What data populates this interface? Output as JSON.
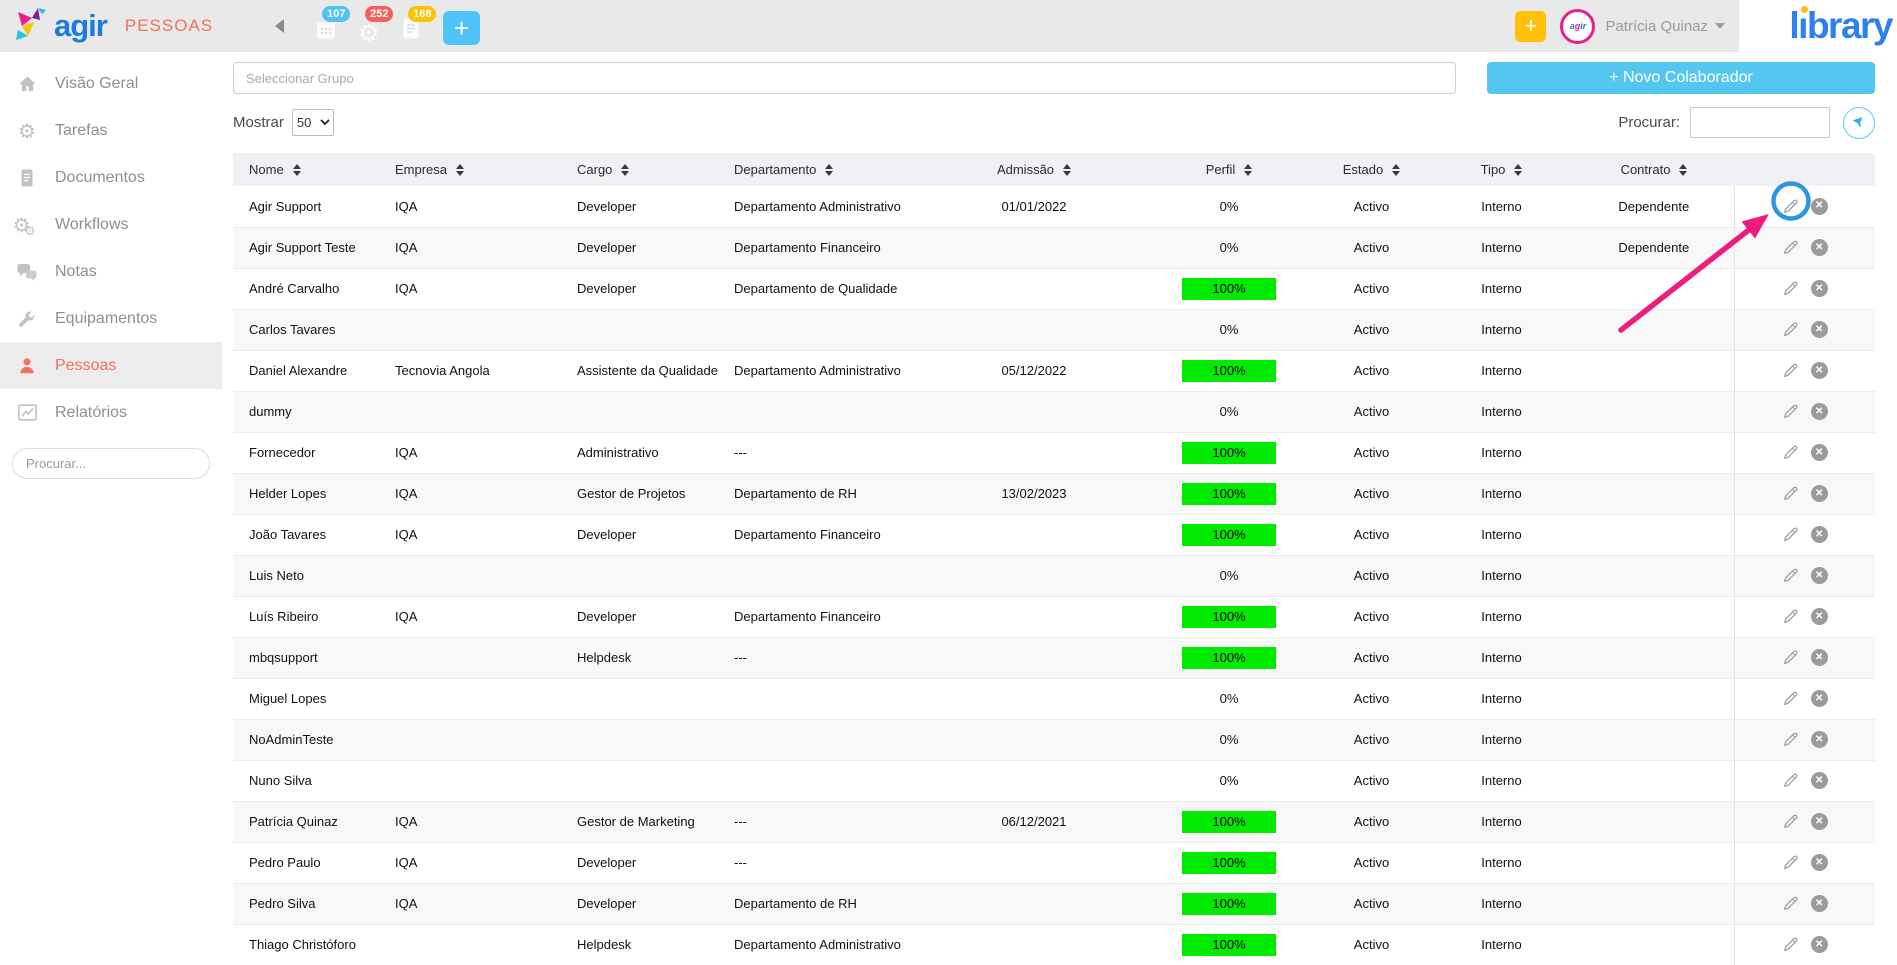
{
  "header": {
    "logo_text": "agir",
    "section_title": "PESSOAS",
    "badges": [
      {
        "icon": "calendar-icon",
        "count": "107",
        "color": "#4FC3F7"
      },
      {
        "icon": "gear-icon",
        "count": "252",
        "color": "#F4605A"
      },
      {
        "icon": "document-icon",
        "count": "168",
        "color": "#FFC107"
      }
    ],
    "add_button_label": "+",
    "quick_add_label": "+",
    "user_name": "Patrícia Quinaz",
    "watermark_part1": "l",
    "watermark_part2": "brary"
  },
  "sidebar": {
    "items": [
      {
        "label": "Visão Geral",
        "icon": "home-icon",
        "active": false
      },
      {
        "label": "Tarefas",
        "icon": "gear-icon",
        "active": false
      },
      {
        "label": "Documentos",
        "icon": "document-icon",
        "active": false
      },
      {
        "label": "Workflows",
        "icon": "workflows-icon",
        "active": false
      },
      {
        "label": "Notas",
        "icon": "chat-icon",
        "active": false
      },
      {
        "label": "Equipamentos",
        "icon": "wrench-icon",
        "active": false
      },
      {
        "label": "Pessoas",
        "icon": "person-icon",
        "active": true
      },
      {
        "label": "Relatórios",
        "icon": "chart-icon",
        "active": false
      }
    ],
    "search_placeholder": "Procurar..."
  },
  "toolbar": {
    "group_placeholder": "Seleccionar Grupo",
    "new_collaborator_label": "+ Novo Colaborador",
    "show_label": "Mostrar",
    "show_value": "50",
    "search_label": "Procurar:",
    "search_value": ""
  },
  "table": {
    "columns": [
      "Nome",
      "Empresa",
      "Cargo",
      "Departamento",
      "Admissão",
      "Perfil",
      "Estado",
      "Tipo",
      "Contrato"
    ],
    "rows": [
      {
        "nome": "Agir Support",
        "empresa": "IQA",
        "cargo": "Developer",
        "departamento": "Departamento Administrativo",
        "admissao": "01/01/2022",
        "perfil": "0%",
        "estado": "Activo",
        "tipo": "Interno",
        "contrato": "Dependente"
      },
      {
        "nome": "Agir Support Teste",
        "empresa": "IQA",
        "cargo": "Developer",
        "departamento": "Departamento Financeiro",
        "admissao": "",
        "perfil": "0%",
        "estado": "Activo",
        "tipo": "Interno",
        "contrato": "Dependente"
      },
      {
        "nome": "André Carvalho",
        "empresa": "IQA",
        "cargo": "Developer",
        "departamento": "Departamento de Qualidade",
        "admissao": "",
        "perfil": "100%",
        "estado": "Activo",
        "tipo": "Interno",
        "contrato": ""
      },
      {
        "nome": "Carlos Tavares",
        "empresa": "",
        "cargo": "",
        "departamento": "",
        "admissao": "",
        "perfil": "0%",
        "estado": "Activo",
        "tipo": "Interno",
        "contrato": ""
      },
      {
        "nome": "Daniel Alexandre",
        "empresa": "Tecnovia Angola",
        "cargo": "Assistente da Qualidade",
        "departamento": "Departamento Administrativo",
        "admissao": "05/12/2022",
        "perfil": "100%",
        "estado": "Activo",
        "tipo": "Interno",
        "contrato": ""
      },
      {
        "nome": "dummy",
        "empresa": "",
        "cargo": "",
        "departamento": "",
        "admissao": "",
        "perfil": "0%",
        "estado": "Activo",
        "tipo": "Interno",
        "contrato": ""
      },
      {
        "nome": "Fornecedor",
        "empresa": "IQA",
        "cargo": "Administrativo",
        "departamento": "---",
        "admissao": "",
        "perfil": "100%",
        "estado": "Activo",
        "tipo": "Interno",
        "contrato": ""
      },
      {
        "nome": "Helder Lopes",
        "empresa": "IQA",
        "cargo": "Gestor de Projetos",
        "departamento": "Departamento de RH",
        "admissao": "13/02/2023",
        "perfil": "100%",
        "estado": "Activo",
        "tipo": "Interno",
        "contrato": ""
      },
      {
        "nome": "João Tavares",
        "empresa": "IQA",
        "cargo": "Developer",
        "departamento": "Departamento Financeiro",
        "admissao": "",
        "perfil": "100%",
        "estado": "Activo",
        "tipo": "Interno",
        "contrato": ""
      },
      {
        "nome": "Luis Neto",
        "empresa": "",
        "cargo": "",
        "departamento": "",
        "admissao": "",
        "perfil": "0%",
        "estado": "Activo",
        "tipo": "Interno",
        "contrato": ""
      },
      {
        "nome": "Luís Ribeiro",
        "empresa": "IQA",
        "cargo": "Developer",
        "departamento": "Departamento Financeiro",
        "admissao": "",
        "perfil": "100%",
        "estado": "Activo",
        "tipo": "Interno",
        "contrato": ""
      },
      {
        "nome": "mbqsupport",
        "empresa": "",
        "cargo": "Helpdesk",
        "departamento": "---",
        "admissao": "",
        "perfil": "100%",
        "estado": "Activo",
        "tipo": "Interno",
        "contrato": ""
      },
      {
        "nome": "Miguel Lopes",
        "empresa": "",
        "cargo": "",
        "departamento": "",
        "admissao": "",
        "perfil": "0%",
        "estado": "Activo",
        "tipo": "Interno",
        "contrato": ""
      },
      {
        "nome": "NoAdminTeste",
        "empresa": "",
        "cargo": "",
        "departamento": "",
        "admissao": "",
        "perfil": "0%",
        "estado": "Activo",
        "tipo": "Interno",
        "contrato": ""
      },
      {
        "nome": "Nuno Silva",
        "empresa": "",
        "cargo": "",
        "departamento": "",
        "admissao": "",
        "perfil": "0%",
        "estado": "Activo",
        "tipo": "Interno",
        "contrato": ""
      },
      {
        "nome": "Patrícia Quinaz",
        "empresa": "IQA",
        "cargo": "Gestor de Marketing",
        "departamento": "---",
        "admissao": "06/12/2021",
        "perfil": "100%",
        "estado": "Activo",
        "tipo": "Interno",
        "contrato": ""
      },
      {
        "nome": "Pedro Paulo",
        "empresa": "IQA",
        "cargo": "Developer",
        "departamento": "---",
        "admissao": "",
        "perfil": "100%",
        "estado": "Activo",
        "tipo": "Interno",
        "contrato": ""
      },
      {
        "nome": "Pedro Silva",
        "empresa": "IQA",
        "cargo": "Developer",
        "departamento": "Departamento de RH",
        "admissao": "",
        "perfil": "100%",
        "estado": "Activo",
        "tipo": "Interno",
        "contrato": ""
      },
      {
        "nome": "Thiago Christóforo",
        "empresa": "",
        "cargo": "Helpdesk",
        "departamento": "Departamento Administrativo",
        "admissao": "",
        "perfil": "100%",
        "estado": "Activo",
        "tipo": "Interno",
        "contrato": ""
      }
    ]
  },
  "annotation": {
    "arrow_color": "#EC1D7D",
    "circle_color": "#2E96E0"
  },
  "colors": {
    "topbar_bg": "#E9E9E9",
    "accent_blue": "#54C7F0",
    "active_coral": "#F4705F",
    "perfil_green": "#00EB00",
    "library_blue": "#2E80EF",
    "badge_yellow": "#FFC107",
    "badge_red": "#F4605A"
  }
}
